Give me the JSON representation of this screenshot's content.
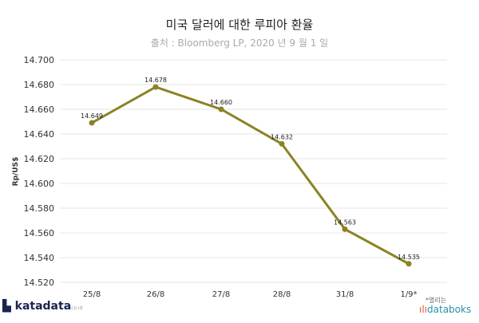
{
  "chart_data": {
    "type": "line",
    "title": "미국 달러에 대한 루피아 환율",
    "subtitle": "출처 : Bloomberg LP, 2020 년 9 월 1 일",
    "xlabel": "",
    "ylabel": "Rp/US$",
    "categories": [
      "25/8",
      "26/8",
      "27/8",
      "28/8",
      "31/8",
      "1/9*"
    ],
    "values": [
      14.649,
      14.678,
      14.66,
      14.632,
      14.563,
      14.535
    ],
    "data_labels": [
      "14.649",
      "14.678",
      "14.660",
      "14.632",
      "14.563",
      "14.535"
    ],
    "ylim": [
      14.52,
      14.7
    ],
    "yticks": [
      "14.700",
      "14.680",
      "14.660",
      "14.640",
      "14.620",
      "14.600",
      "14.580",
      "14.560",
      "14.540",
      "14.520"
    ],
    "grid": true,
    "line_color": "#8b8324"
  },
  "footer": {
    "brand_left": "katadata",
    "brand_left_suffix": "co.id",
    "note": "*열리는",
    "brand_right": "databoks"
  }
}
